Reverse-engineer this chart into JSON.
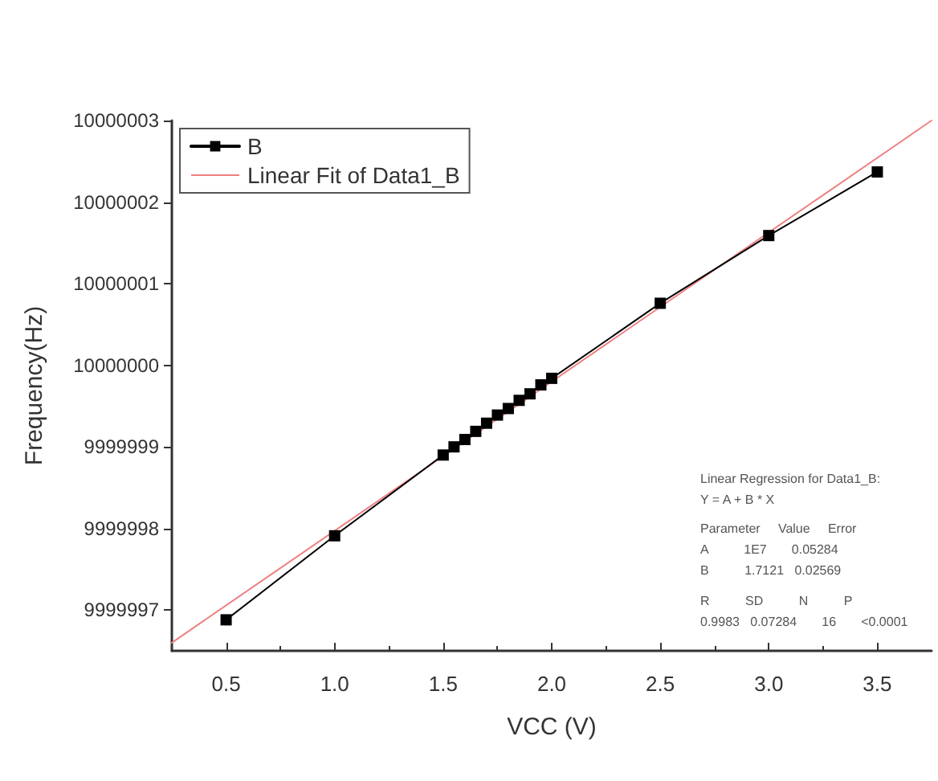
{
  "chart_data": {
    "type": "line",
    "xlabel": "VCC (V)",
    "ylabel": "Frequency(Hz)",
    "xlim": [
      0.25,
      3.75
    ],
    "xticks": [
      0.5,
      {
        "value": 1,
        "label": "1.0"
      },
      1.5,
      {
        "value": 2,
        "label": "2.0"
      },
      2.5,
      {
        "value": 3,
        "label": "3.0"
      },
      3.5
    ],
    "ylim": [
      9999996.5,
      10000003
    ],
    "yticks": [
      9999997,
      9999998,
      9999999,
      10000000,
      10000001,
      10000002,
      10000003
    ],
    "grid": false,
    "legend": "top left",
    "marker": "square",
    "series": [
      {
        "name": "B",
        "color": "#000000",
        "x": [
          0.5,
          1.0,
          1.5,
          1.55,
          1.6,
          1.65,
          1.7,
          1.75,
          1.8,
          1.85,
          1.9,
          1.95,
          2.0,
          2.5,
          3.0,
          3.5
        ],
        "values": [
          9999996.88,
          9999997.91,
          9999998.9,
          9999999.0,
          9999999.09,
          9999999.19,
          9999999.29,
          9999999.39,
          9999999.47,
          9999999.57,
          9999999.65,
          9999999.76,
          9999999.84,
          10000000.76,
          10000001.59,
          10000002.37
        ]
      },
      {
        "name": "Linear Fit of Data1_B",
        "color": "#f08080",
        "marker": "none",
        "x": [
          0.25,
          3.75
        ],
        "values": [
          9999996.6,
          10000003.0
        ]
      }
    ],
    "annotations": [
      "Linear Regression for Data1_B:",
      "Y = A + B * X",
      "Parameter     Value     Error",
      "A          1E7       0.05284",
      "B          1.7121   0.02569",
      "R          SD          N          P",
      "0.9983   0.07284       16       <0.0001"
    ]
  }
}
